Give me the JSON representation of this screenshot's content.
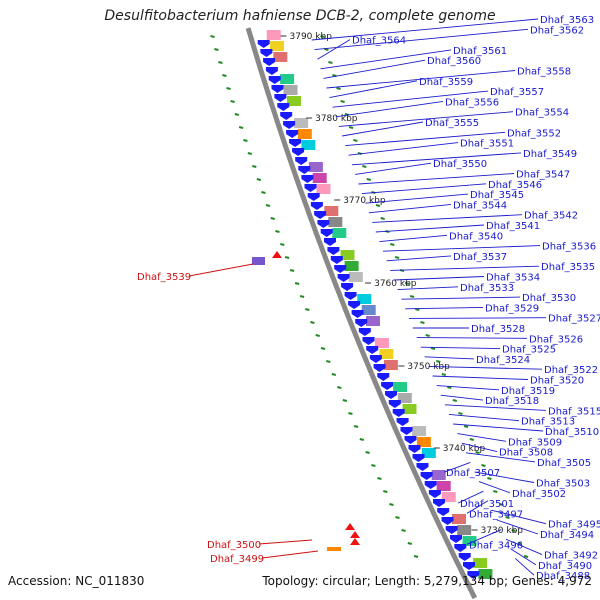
{
  "title": "Desulfitobacterium hafniense DCB-2, complete genome",
  "accession_text": "Accession: NC_011830",
  "summary_text": "Topology: circular; Length: 5,279,134 bp; Genes: 4,972",
  "ticks": [
    "3790 kbp",
    "3780 kbp",
    "3770 kbp",
    "3760 kbp",
    "3750 kbp",
    "3740 kbp",
    "3730 kbp"
  ],
  "gene_labels_right": [
    "Dhaf_3563",
    "Dhaf_3562",
    "Dhaf_3564",
    "Dhaf_3561",
    "Dhaf_3560",
    "Dhaf_3558",
    "Dhaf_3559",
    "Dhaf_3557",
    "Dhaf_3556",
    "Dhaf_3554",
    "Dhaf_3555",
    "Dhaf_3552",
    "Dhaf_3551",
    "Dhaf_3549",
    "Dhaf_3550",
    "Dhaf_3547",
    "Dhaf_3546",
    "Dhaf_3545",
    "Dhaf_3544",
    "Dhaf_3542",
    "Dhaf_3541",
    "Dhaf_3540",
    "Dhaf_3536",
    "Dhaf_3537",
    "Dhaf_3535",
    "Dhaf_3534",
    "Dhaf_3533",
    "Dhaf_3530",
    "Dhaf_3529",
    "Dhaf_3527",
    "Dhaf_3528",
    "Dhaf_3526",
    "Dhaf_3525",
    "Dhaf_3524",
    "Dhaf_3522",
    "Dhaf_3520",
    "Dhaf_3519",
    "Dhaf_3518",
    "Dhaf_3515",
    "Dhaf_3513",
    "Dhaf_3510",
    "Dhaf_3509",
    "Dhaf_3508",
    "Dhaf_3505",
    "Dhaf_3507",
    "Dhaf_3503",
    "Dhaf_3502",
    "Dhaf_3501",
    "Dhaf_3497",
    "Dhaf_3495",
    "Dhaf_3494",
    "Dhaf_3496",
    "Dhaf_3492",
    "Dhaf_3490",
    "Dhaf_3488"
  ],
  "gene_labels_left": [
    "Dhaf_3539",
    "Dhaf_3500",
    "Dhaf_3499"
  ],
  "colors": {
    "backbone": "#888888",
    "forward_gene": "#1a1aff",
    "reverse_gene": "#ee1111",
    "label_blue": "#1a1acc",
    "label_red": "#cc1111",
    "dots": "#228822"
  }
}
